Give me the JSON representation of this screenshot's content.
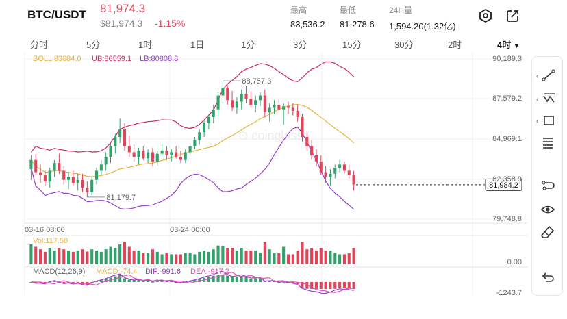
{
  "header": {
    "pair": "BTC/USDT",
    "last_price": "81,974.3",
    "last_price_sub": "$81,974.3",
    "change_pct": "-1.15%",
    "stats": [
      {
        "label": "最高",
        "value": "83,536.2"
      },
      {
        "label": "最低",
        "value": "81,278.6"
      },
      {
        "label": "24H量",
        "value": "1,594.20(1.32亿)"
      }
    ],
    "icons": [
      "settings-hexagon-icon",
      "share-icon"
    ]
  },
  "timeframes": [
    "分时",
    "5分",
    "1时",
    "1日",
    "1分",
    "3分",
    "15分",
    "30分",
    "2时",
    "4时"
  ],
  "active_timeframe": "4时",
  "indicators": {
    "boll": {
      "label": "BOLL 83684.0",
      "ub": "UB:86559.1",
      "lb": "LB:80808.8"
    },
    "vol": {
      "label": "Vol:117.50"
    },
    "macd": {
      "label": "MACD(12,26,9)",
      "macd": "MACD:-74.4",
      "dif": "DIF:-991.6",
      "dea": "DEA:-917.2"
    }
  },
  "colors": {
    "up": "#2fa36b",
    "down": "#e0455a",
    "boll_mid": "#e8b23c",
    "boll_ub": "#c8285a",
    "boll_lb": "#9b3bd0",
    "dea": "#e04fb8"
  },
  "chart_data": {
    "type": "candlestick",
    "y_ticks": [
      "90,189.3",
      "87,579.2",
      "84,969.1",
      "82,358.9",
      "79,748.8"
    ],
    "ylim": [
      79748.8,
      90189.3
    ],
    "x_ticks": [
      "03-16 08:00",
      "03-24 00:00"
    ],
    "current_price_label": "81,984.2",
    "current_price": 81984.2,
    "annotations": [
      {
        "text": "88,757.3",
        "value": 88757.3
      },
      {
        "text": "81,179.7",
        "value": 81179.7
      }
    ],
    "vol_ticks": [
      "0.00"
    ],
    "macd_ticks": [
      "-1243.7"
    ],
    "candles": [
      [
        83000,
        83900,
        82300,
        83600
      ],
      [
        83600,
        84000,
        82600,
        82800
      ],
      [
        82800,
        83300,
        82100,
        82600
      ],
      [
        82600,
        82900,
        81900,
        82200
      ],
      [
        82200,
        83100,
        81800,
        82900
      ],
      [
        82900,
        83600,
        82500,
        83400
      ],
      [
        83400,
        84000,
        82700,
        82900
      ],
      [
        82900,
        83200,
        82000,
        82300
      ],
      [
        82300,
        82800,
        81700,
        82500
      ],
      [
        82500,
        82900,
        81900,
        82100
      ],
      [
        82100,
        82700,
        81600,
        82300
      ],
      [
        82300,
        82700,
        81500,
        81800
      ],
      [
        81800,
        82200,
        81180,
        81500
      ],
      [
        81500,
        82500,
        81300,
        82300
      ],
      [
        82300,
        83100,
        82000,
        82900
      ],
      [
        82900,
        83600,
        82600,
        83300
      ],
      [
        83300,
        84100,
        82900,
        83800
      ],
      [
        83800,
        84800,
        83400,
        84500
      ],
      [
        84500,
        85300,
        84000,
        85100
      ],
      [
        85100,
        86300,
        84700,
        85600
      ],
      [
        85600,
        86000,
        84200,
        84500
      ],
      [
        84500,
        85200,
        83800,
        84100
      ],
      [
        84100,
        84600,
        83500,
        83800
      ],
      [
        83800,
        84400,
        83300,
        84200
      ],
      [
        84200,
        84500,
        83600,
        83700
      ],
      [
        83700,
        84300,
        83400,
        84100
      ],
      [
        84100,
        84400,
        83200,
        83500
      ],
      [
        83500,
        84200,
        83200,
        84000
      ],
      [
        84000,
        84600,
        83800,
        84200
      ],
      [
        84200,
        84500,
        83600,
        83900
      ],
      [
        83900,
        84300,
        83500,
        84100
      ],
      [
        84100,
        84500,
        83700,
        83800
      ],
      [
        83800,
        84200,
        83400,
        83600
      ],
      [
        83600,
        84300,
        83400,
        84100
      ],
      [
        84100,
        84700,
        83800,
        84500
      ],
      [
        84500,
        85100,
        84300,
        84900
      ],
      [
        84900,
        85600,
        84600,
        85400
      ],
      [
        85400,
        86200,
        85100,
        86000
      ],
      [
        86000,
        86600,
        85600,
        86400
      ],
      [
        86400,
        87200,
        86000,
        86900
      ],
      [
        86900,
        88000,
        86500,
        87800
      ],
      [
        87800,
        88757,
        87300,
        88300
      ],
      [
        88300,
        88500,
        87200,
        87500
      ],
      [
        87500,
        88100,
        86800,
        87000
      ],
      [
        87000,
        87700,
        86600,
        87400
      ],
      [
        87400,
        88200,
        86900,
        87900
      ],
      [
        87900,
        88400,
        87300,
        87600
      ],
      [
        87600,
        88100,
        87000,
        87200
      ],
      [
        87200,
        87800,
        86700,
        87500
      ],
      [
        87500,
        88000,
        87100,
        87800
      ],
      [
        87800,
        88200,
        86400,
        86700
      ],
      [
        86700,
        87300,
        86100,
        87000
      ],
      [
        87000,
        87500,
        86600,
        87200
      ],
      [
        87200,
        87600,
        86700,
        86900
      ],
      [
        86900,
        87300,
        85900,
        87100
      ],
      [
        87100,
        87400,
        86600,
        87000
      ],
      [
        87000,
        87300,
        86500,
        86800
      ],
      [
        86800,
        87200,
        86100,
        86400
      ],
      [
        86400,
        86600,
        84800,
        85100
      ],
      [
        85100,
        85400,
        84200,
        84500
      ],
      [
        84500,
        84900,
        83600,
        83900
      ],
      [
        83900,
        84300,
        83200,
        83500
      ],
      [
        83500,
        83900,
        82600,
        82800
      ],
      [
        82800,
        83200,
        82100,
        82500
      ],
      [
        82500,
        83000,
        81900,
        82700
      ],
      [
        82700,
        83300,
        82400,
        83100
      ],
      [
        83100,
        83600,
        82800,
        83300
      ],
      [
        83300,
        83500,
        82700,
        82900
      ],
      [
        82900,
        83300,
        82400,
        82600
      ],
      [
        82600,
        82900,
        81600,
        82000
      ]
    ]
  }
}
